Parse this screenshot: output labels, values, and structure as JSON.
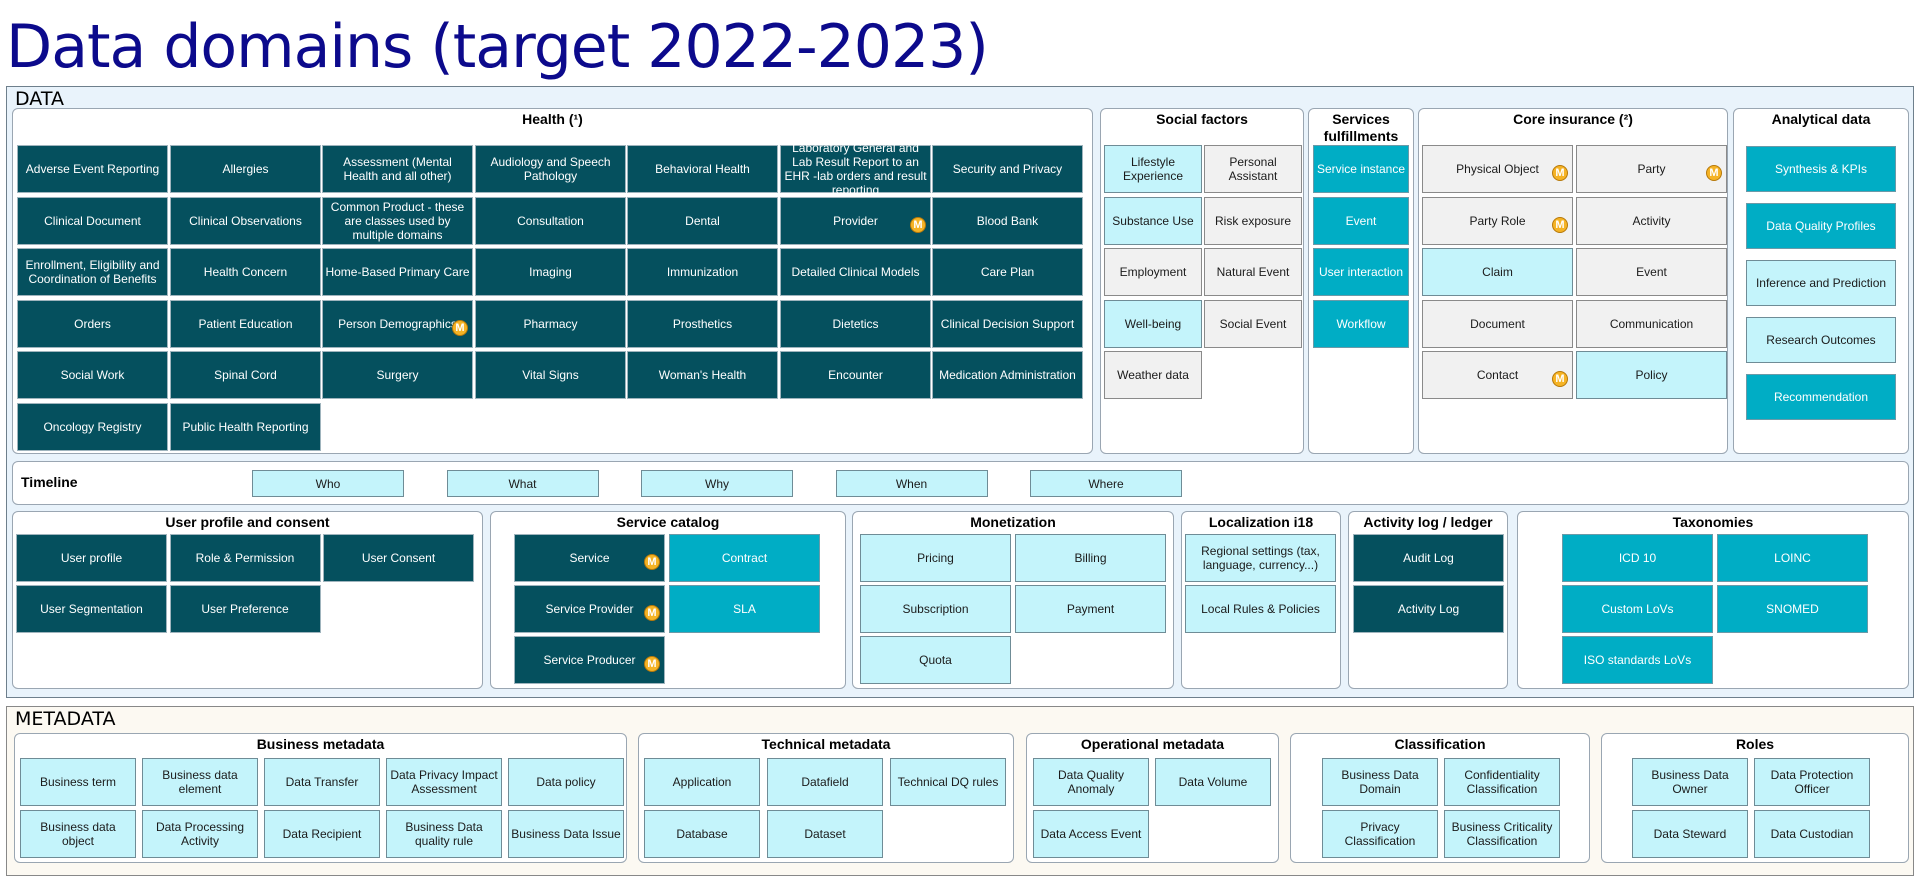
{
  "title": "Data domains (target 2022-2023)",
  "sections": {
    "data": "DATA",
    "metadata": "METADATA"
  },
  "badge": "M",
  "groups": {
    "health": {
      "title": "Health (¹)",
      "items": [
        "Adverse Event Reporting",
        "Allergies",
        "Assessment (Mental Health and all other)",
        "Audiology and Speech Pathology",
        "Behavioral Health",
        "Laboratory General and Lab Result Report to an EHR -lab orders and result reporting",
        "Security and Privacy",
        "Clinical Document",
        "Clinical Observations",
        "Common Product - these are classes used by multiple domains",
        "Consultation",
        "Dental",
        "Provider",
        "Blood Bank",
        "Enrollment, Eligibility and Coordination of Benefits",
        "Health Concern",
        "Home-Based Primary Care",
        "Imaging",
        "Immunization",
        "Detailed Clinical Models",
        "Care Plan",
        "Orders",
        "Patient Education",
        "Person Demographics",
        "Pharmacy",
        "Prosthetics",
        "Dietetics",
        "Clinical Decision Support",
        "Social Work",
        "Spinal Cord",
        "Surgery",
        "Vital Signs",
        "Woman's Health",
        "Encounter",
        "Medication Administration",
        "Oncology Registry",
        "Public Health Reporting"
      ]
    },
    "social": {
      "title": "Social factors",
      "items": [
        "Lifestyle Experience",
        "Personal Assistant",
        "Substance Use",
        "Risk exposure",
        "Employment",
        "Natural Event",
        "Well-being",
        "Social Event",
        "Weather data"
      ]
    },
    "services": {
      "title": "Services fulfillments",
      "items": [
        "Service instance",
        "Event",
        "User interaction",
        "Workflow"
      ]
    },
    "core": {
      "title": "Core insurance (²)",
      "items": [
        "Physical Object",
        "Party",
        "Party Role",
        "Activity",
        "Claim",
        "Event",
        "Document",
        "Communication",
        "Contact",
        "Policy"
      ]
    },
    "analytical": {
      "title": "Analytical data",
      "items": [
        "Synthesis & KPIs",
        "Data Quality Profiles",
        "Inference and Prediction",
        "Research Outcomes",
        "Recommendation"
      ]
    },
    "timeline": {
      "title": "Timeline",
      "items": [
        "Who",
        "What",
        "Why",
        "When",
        "Where"
      ]
    },
    "userprofile": {
      "title": "User profile and consent",
      "items": [
        "User profile",
        "Role & Permission",
        "User Consent",
        "User Segmentation",
        "User Preference"
      ]
    },
    "catalog": {
      "title": "Service catalog",
      "items": [
        "Service",
        "Contract",
        "Service Provider",
        "SLA",
        "Service Producer"
      ]
    },
    "monetization": {
      "title": "Monetization",
      "items": [
        "Pricing",
        "Billing",
        "Subscription",
        "Payment",
        "Quota"
      ]
    },
    "localization": {
      "title": "Localization i18",
      "items": [
        "Regional settings (tax, language, currency...)",
        "Local Rules & Policies"
      ]
    },
    "activitylog": {
      "title": "Activity log / ledger",
      "items": [
        "Audit Log",
        "Activity Log"
      ]
    },
    "taxonomies": {
      "title": "Taxonomies",
      "items": [
        "ICD 10",
        "LOINC",
        "Custom LoVs",
        "SNOMED",
        "ISO standards LoVs"
      ]
    },
    "business": {
      "title": "Business metadata",
      "items": [
        "Business term",
        "Business data element",
        "Data Transfer",
        "Data Privacy Impact Assessment",
        "Data policy",
        "Business data object",
        "Data Processing Activity",
        "Data Recipient",
        "Business Data quality rule",
        "Business Data Issue"
      ]
    },
    "technical": {
      "title": "Technical metadata",
      "items": [
        "Application",
        "Datafield",
        "Technical DQ rules",
        "Database",
        "Dataset"
      ]
    },
    "operational": {
      "title": "Operational metadata",
      "items": [
        "Data Quality Anomaly",
        "Data Volume",
        "Data Access Event"
      ]
    },
    "classification": {
      "title": "Classification",
      "items": [
        "Business Data Domain",
        "Confidentiality Classification",
        "Privacy Classification",
        "Business Criticality Classification"
      ]
    },
    "roles": {
      "title": "Roles",
      "items": [
        "Business Data Owner",
        "Data Protection Officer",
        "Data Steward",
        "Data Custodian"
      ]
    }
  },
  "colors": {
    "dark": "#05505e",
    "teal": "#00adc5",
    "light": "#c4f4fb",
    "gray": "#f1f1f1",
    "title": "#0c0a8c"
  }
}
